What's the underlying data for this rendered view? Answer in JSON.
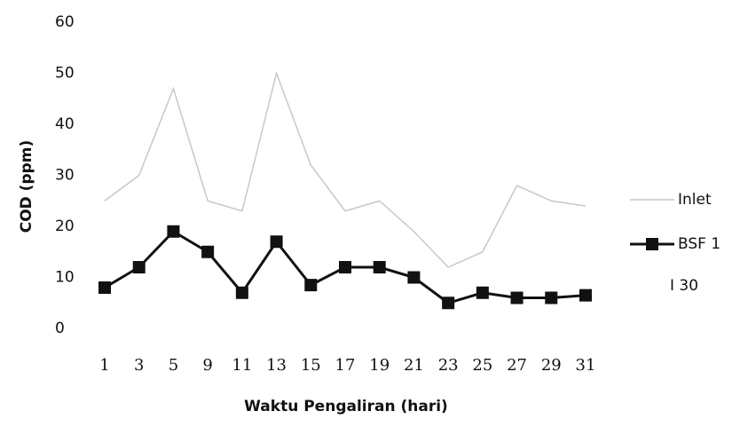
{
  "chart_data": {
    "type": "line",
    "x_label": "Waktu Pengaliran (hari)",
    "y_label": "COD (ppm)",
    "categories": [
      "1",
      "3",
      "5",
      "9",
      "11",
      "13",
      "15",
      "17",
      "19",
      "21",
      "23",
      "25",
      "27",
      "29",
      "31"
    ],
    "series": [
      {
        "name": "Inlet",
        "color": "#c8c8c8",
        "values": [
          25,
          30,
          47,
          25,
          23,
          50,
          32,
          23,
          25,
          19,
          12,
          15,
          28,
          25,
          24
        ]
      },
      {
        "name": "BSF 1",
        "color": "#111111",
        "values": [
          8,
          12,
          19,
          15,
          7,
          17,
          8.5,
          12,
          12,
          10,
          5,
          7,
          6,
          6,
          6.5
        ]
      }
    ],
    "annotation": "I 30",
    "ylim": [
      0,
      60
    ],
    "yticks": [
      0,
      10,
      20,
      30,
      40,
      50,
      60
    ],
    "grid": false,
    "legend": "right"
  }
}
